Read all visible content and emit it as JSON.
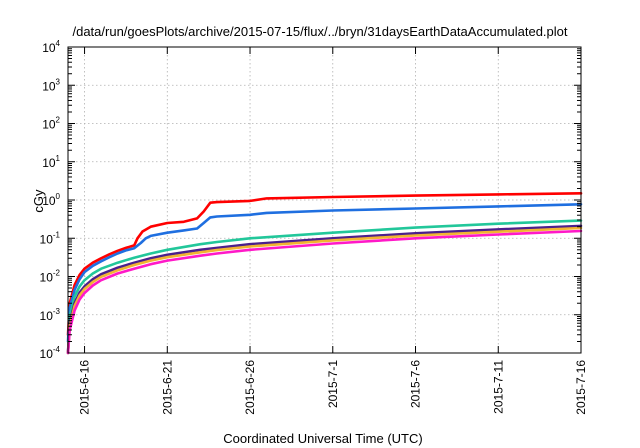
{
  "chart_data": {
    "type": "line",
    "title": "/data/run/goesPlots/archive/2015-07-15/flux/../bryn/31daysEarthDataAccumulated.plot",
    "xlabel": "Coordinated Universal Time (UTC)",
    "ylabel": "cGy",
    "y_scale": "log",
    "ylim": [
      0.0001,
      10000
    ],
    "y_ticks": [
      {
        "value": 0.0001,
        "base": "10",
        "exp": "-4"
      },
      {
        "value": 0.001,
        "base": "10",
        "exp": "-3"
      },
      {
        "value": 0.01,
        "base": "10",
        "exp": "-2"
      },
      {
        "value": 0.1,
        "base": "10",
        "exp": "-1"
      },
      {
        "value": 1,
        "base": "10",
        "exp": "0"
      },
      {
        "value": 10,
        "base": "10",
        "exp": "1"
      },
      {
        "value": 100,
        "base": "10",
        "exp": "2"
      },
      {
        "value": 1000,
        "base": "10",
        "exp": "3"
      },
      {
        "value": 10000,
        "base": "10",
        "exp": "4"
      }
    ],
    "x_range_days": [
      -1.0,
      30.0
    ],
    "x_ticks": [
      {
        "day": 0,
        "label": "2015-6-16"
      },
      {
        "day": 5,
        "label": "2015-6-21"
      },
      {
        "day": 10,
        "label": "2015-6-26"
      },
      {
        "day": 15,
        "label": "2015-7-1"
      },
      {
        "day": 20,
        "label": "2015-7-6"
      },
      {
        "day": 25,
        "label": "2015-7-11"
      },
      {
        "day": 30,
        "label": "2015-7-16"
      }
    ],
    "grid": true,
    "legend": "none",
    "series": [
      {
        "color": "#ff0000",
        "x": [
          -1.0,
          -0.9,
          -0.6,
          -0.3,
          0.0,
          0.5,
          1.0,
          1.5,
          2.0,
          2.5,
          3.0,
          3.2,
          3.5,
          4.0,
          5.0,
          6.0,
          6.8,
          7.2,
          7.6,
          8.0,
          10.0,
          11.0,
          15.0,
          20.0,
          25.0,
          30.0
        ],
        "y": [
          0.0003,
          0.002,
          0.006,
          0.011,
          0.016,
          0.023,
          0.03,
          0.038,
          0.047,
          0.056,
          0.065,
          0.1,
          0.15,
          0.2,
          0.25,
          0.27,
          0.33,
          0.5,
          0.85,
          0.88,
          0.95,
          1.1,
          1.2,
          1.3,
          1.4,
          1.5
        ]
      },
      {
        "color": "#1f6fe0",
        "x": [
          -1.0,
          -0.9,
          -0.6,
          -0.3,
          0.0,
          0.5,
          1.0,
          1.5,
          2.0,
          2.5,
          3.0,
          3.4,
          3.7,
          4.0,
          5.0,
          6.0,
          6.8,
          7.2,
          7.6,
          8.0,
          10.0,
          11.0,
          15.0,
          20.0,
          25.0,
          30.0
        ],
        "y": [
          0.0002,
          0.0015,
          0.0045,
          0.0085,
          0.013,
          0.019,
          0.025,
          0.032,
          0.04,
          0.048,
          0.055,
          0.075,
          0.1,
          0.115,
          0.14,
          0.16,
          0.18,
          0.25,
          0.35,
          0.37,
          0.41,
          0.46,
          0.53,
          0.6,
          0.68,
          0.77
        ]
      },
      {
        "color": "#22c79a",
        "x": [
          -1.0,
          -0.9,
          -0.6,
          -0.3,
          0.0,
          0.5,
          1.0,
          2.0,
          3.0,
          4.0,
          5.0,
          7.0,
          8.0,
          10.0,
          15.0,
          20.0,
          25.0,
          30.0
        ],
        "y": [
          0.0001,
          0.0009,
          0.003,
          0.0055,
          0.008,
          0.012,
          0.016,
          0.023,
          0.031,
          0.04,
          0.05,
          0.07,
          0.08,
          0.1,
          0.14,
          0.19,
          0.24,
          0.29
        ]
      },
      {
        "color": "#4b1f8c",
        "x": [
          -1.0,
          -0.9,
          -0.6,
          -0.3,
          0.0,
          0.5,
          1.0,
          2.0,
          3.0,
          4.0,
          5.0,
          7.0,
          8.0,
          10.0,
          15.0,
          20.0,
          25.0,
          30.0
        ],
        "y": [
          0.0001,
          0.0006,
          0.002,
          0.0038,
          0.0055,
          0.0085,
          0.0115,
          0.017,
          0.023,
          0.03,
          0.037,
          0.05,
          0.056,
          0.07,
          0.1,
          0.135,
          0.17,
          0.21
        ]
      },
      {
        "color": "#f2b431",
        "x": [
          -1.0,
          -0.9,
          -0.6,
          -0.3,
          0.0,
          0.5,
          1.0,
          2.0,
          3.0,
          4.0,
          5.0,
          7.0,
          8.0,
          10.0,
          15.0,
          20.0,
          25.0,
          30.0
        ],
        "y": [
          0.0001,
          0.0005,
          0.0017,
          0.0032,
          0.0047,
          0.0072,
          0.0098,
          0.0145,
          0.02,
          0.026,
          0.032,
          0.043,
          0.049,
          0.061,
          0.088,
          0.118,
          0.148,
          0.185
        ]
      },
      {
        "color": "#ff19c8",
        "x": [
          -1.0,
          -0.9,
          -0.6,
          -0.3,
          0.0,
          0.5,
          1.0,
          2.0,
          3.0,
          4.0,
          5.0,
          7.0,
          8.0,
          10.0,
          15.0,
          20.0,
          25.0,
          30.0
        ],
        "y": [
          0.0001,
          0.0004,
          0.0013,
          0.0025,
          0.0037,
          0.0058,
          0.008,
          0.012,
          0.016,
          0.021,
          0.026,
          0.035,
          0.04,
          0.05,
          0.073,
          0.1,
          0.125,
          0.155
        ]
      }
    ]
  }
}
